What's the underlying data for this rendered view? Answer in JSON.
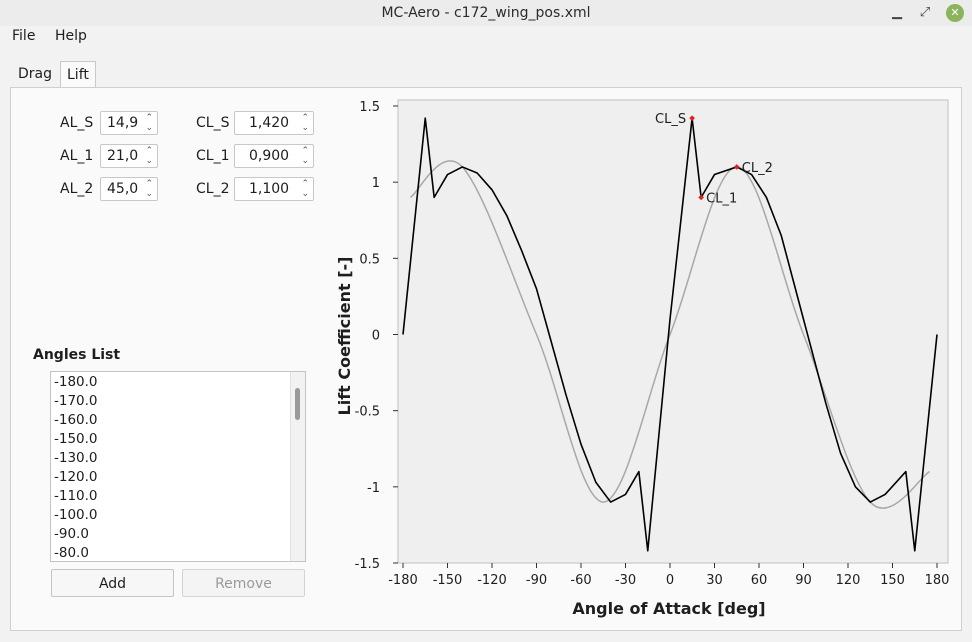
{
  "window": {
    "title": "MC-Aero - c172_wing_pos.xml",
    "minimize": "▁",
    "restore": "⤢",
    "close": "✕"
  },
  "menu": [
    "File",
    "Help"
  ],
  "tabs": [
    {
      "label": "Drag",
      "active": false
    },
    {
      "label": "Lift",
      "active": true
    }
  ],
  "params": {
    "al_s": {
      "label": "AL_S",
      "value": "14,9"
    },
    "al_1": {
      "label": "AL_1",
      "value": "21,0"
    },
    "al_2": {
      "label": "AL_2",
      "value": "45,0"
    },
    "cl_s": {
      "label": "CL_S",
      "value": "1,420"
    },
    "cl_1": {
      "label": "CL_1",
      "value": "0,900"
    },
    "cl_2": {
      "label": "CL_2",
      "value": "1,100"
    }
  },
  "angles": {
    "title": "Angles List",
    "items": [
      "-180.0",
      "-170.0",
      "-160.0",
      "-150.0",
      "-130.0",
      "-120.0",
      "-110.0",
      "-100.0",
      "-90.0",
      "-80.0"
    ],
    "add_label": "Add",
    "remove_label": "Remove"
  },
  "chart_data": {
    "type": "line",
    "xlabel": "Angle of Attack [deg]",
    "ylabel": "Lift Coefficient [-]",
    "xlim": [
      -180,
      180
    ],
    "ylim": [
      -1.5,
      1.5
    ],
    "xticks": [
      -180,
      -150,
      -120,
      -90,
      -60,
      -30,
      0,
      30,
      60,
      90,
      120,
      150,
      180
    ],
    "yticks": [
      -1.5,
      -1,
      -0.5,
      0,
      0.5,
      1,
      1.5
    ],
    "grid": false,
    "series": [
      {
        "style": "gray-smooth",
        "x": [
          -175,
          -140,
          -90,
          -45,
          0,
          45,
          90,
          135,
          175
        ],
        "y": [
          0.9,
          1.1,
          0.0,
          -1.1,
          0.0,
          1.1,
          0.0,
          -1.1,
          -0.9
        ]
      },
      {
        "style": "black",
        "x": [
          -180,
          -165,
          -159,
          -150,
          -140,
          -130,
          -120,
          -110,
          -100,
          -90,
          -80,
          -70,
          -60,
          -50,
          -40,
          -30,
          -21,
          -15,
          0,
          14.9,
          21,
          30,
          45,
          55,
          65,
          75,
          90,
          105,
          115,
          125,
          135,
          145,
          159,
          165,
          180
        ],
        "y": [
          0,
          1.42,
          0.9,
          1.05,
          1.1,
          1.06,
          0.95,
          0.78,
          0.55,
          0.3,
          -0.05,
          -0.4,
          -0.72,
          -0.97,
          -1.1,
          -1.05,
          -0.9,
          -1.42,
          0.1,
          1.42,
          0.9,
          1.05,
          1.1,
          1.05,
          0.9,
          0.65,
          0.1,
          -0.45,
          -0.78,
          -1.0,
          -1.1,
          -1.05,
          -0.9,
          -1.42,
          0
        ]
      }
    ],
    "annotations": [
      {
        "label": "CL_S",
        "x": 14.9,
        "y": 1.42
      },
      {
        "label": "CL_1",
        "x": 21,
        "y": 0.9
      },
      {
        "label": "CL_2",
        "x": 45,
        "y": 1.1
      }
    ],
    "colors": {
      "line": "#000000",
      "smooth": "#a8a8a8",
      "marker": "#e02020",
      "plot_bg": "#efefef"
    }
  }
}
